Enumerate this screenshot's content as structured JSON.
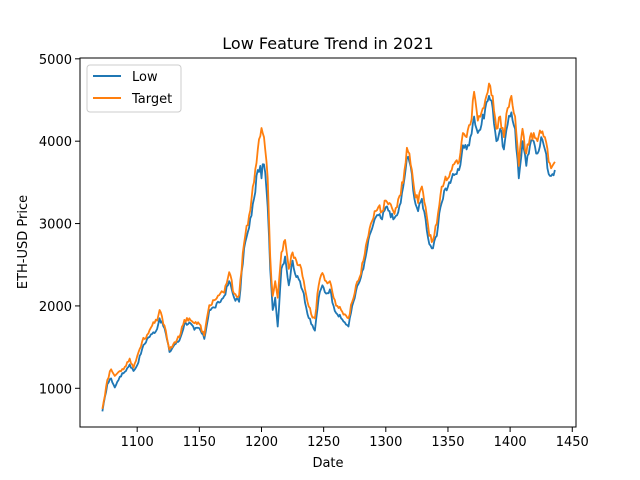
{
  "chart_data": {
    "type": "line",
    "title": "Low Feature Trend in 2021",
    "xlabel": "Date",
    "ylabel": "ETH-USD Price",
    "xlim": [
      1054,
      1453
    ],
    "ylim": [
      530,
      5010
    ],
    "xticks": [
      1100,
      1150,
      1200,
      1250,
      1300,
      1350,
      1400,
      1450
    ],
    "yticks": [
      1000,
      2000,
      3000,
      4000,
      5000
    ],
    "grid": false,
    "legend_position": "top-left",
    "colors": {
      "low": "#1f77b4",
      "target": "#ff7f0e"
    },
    "knots": {
      "x": [
        1072,
        1076,
        1079,
        1082,
        1086,
        1090,
        1094,
        1097,
        1100,
        1104,
        1108,
        1112,
        1116,
        1118,
        1122,
        1126,
        1130,
        1134,
        1138,
        1142,
        1146,
        1150,
        1154,
        1158,
        1162,
        1166,
        1170,
        1174,
        1178,
        1182,
        1186,
        1190,
        1194,
        1197,
        1199,
        1200,
        1201,
        1203,
        1205,
        1207,
        1209,
        1211,
        1213,
        1216,
        1219,
        1222,
        1225,
        1228,
        1231,
        1234,
        1237,
        1240,
        1243,
        1246,
        1249,
        1252,
        1255,
        1258,
        1261,
        1264,
        1267,
        1270,
        1273,
        1276,
        1279,
        1282,
        1285,
        1288,
        1291,
        1294,
        1297,
        1300,
        1303,
        1306,
        1309,
        1312,
        1315,
        1317,
        1319,
        1321,
        1323,
        1326,
        1329,
        1332,
        1335,
        1338,
        1341,
        1344,
        1347,
        1350,
        1353,
        1356,
        1359,
        1362,
        1365,
        1368,
        1371,
        1374,
        1377,
        1380,
        1383,
        1386,
        1389,
        1392,
        1395,
        1398,
        1401,
        1404,
        1407,
        1410,
        1413,
        1416,
        1419,
        1422,
        1425,
        1428,
        1431,
        1434,
        1436
      ],
      "low": [
        720,
        1050,
        1120,
        1010,
        1140,
        1200,
        1290,
        1210,
        1280,
        1480,
        1600,
        1660,
        1720,
        1850,
        1730,
        1440,
        1530,
        1580,
        1780,
        1800,
        1710,
        1730,
        1600,
        1950,
        1980,
        2040,
        2120,
        2300,
        2100,
        2050,
        2700,
        2950,
        3300,
        3650,
        3700,
        3550,
        3720,
        3620,
        3200,
        2450,
        1950,
        2100,
        1750,
        2450,
        2600,
        2250,
        2550,
        2350,
        2300,
        2150,
        1900,
        1780,
        1700,
        2100,
        2250,
        2150,
        2200,
        2000,
        1900,
        1850,
        1800,
        1750,
        2000,
        2180,
        2300,
        2450,
        2700,
        2900,
        3050,
        3100,
        3050,
        3200,
        3150,
        3050,
        3100,
        3250,
        3550,
        3800,
        3750,
        3600,
        3300,
        3150,
        3300,
        3050,
        2750,
        2700,
        2850,
        3200,
        3400,
        3450,
        3550,
        3600,
        3650,
        3950,
        3900,
        4050,
        4300,
        4100,
        4200,
        4400,
        4550,
        4400,
        4000,
        4150,
        3900,
        4200,
        4350,
        4150,
        3550,
        4000,
        3700,
        3950,
        4000,
        3850,
        4050,
        3900,
        3600,
        3600,
        3650
      ],
      "target": [
        750,
        1100,
        1230,
        1150,
        1210,
        1260,
        1360,
        1250,
        1390,
        1570,
        1650,
        1760,
        1820,
        1950,
        1760,
        1470,
        1560,
        1620,
        1830,
        1850,
        1790,
        1780,
        1640,
        2010,
        2070,
        2130,
        2160,
        2410,
        2150,
        2130,
        2760,
        3100,
        3500,
        3900,
        4060,
        4160,
        4100,
        3900,
        3550,
        2600,
        2120,
        2300,
        2100,
        2650,
        2800,
        2450,
        2650,
        2550,
        2500,
        2300,
        2050,
        1900,
        1850,
        2250,
        2400,
        2300,
        2300,
        2100,
        2000,
        1950,
        1900,
        1850,
        2050,
        2250,
        2350,
        2550,
        2800,
        3000,
        3150,
        3200,
        3150,
        3280,
        3250,
        3150,
        3200,
        3350,
        3650,
        3920,
        3850,
        3650,
        3400,
        3250,
        3450,
        3200,
        2850,
        2800,
        3000,
        3350,
        3500,
        3550,
        3650,
        3750,
        3750,
        4100,
        4050,
        4200,
        4600,
        4250,
        4350,
        4500,
        4700,
        4550,
        4150,
        4300,
        4050,
        4400,
        4550,
        4300,
        3700,
        4150,
        3850,
        4050,
        4100,
        4000,
        4100,
        4050,
        3750,
        3700,
        3750
      ]
    },
    "series": [
      {
        "name": "Low"
      },
      {
        "name": "Target"
      }
    ]
  }
}
